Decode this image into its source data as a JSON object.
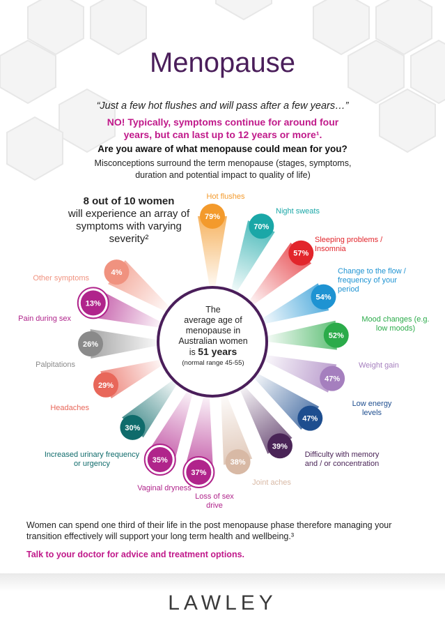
{
  "title": "Menopause",
  "quote": "“Just a few hot flushes and will pass after a few years…”",
  "no_statement": "NO! Typically, symptoms continue for around four years, but can last up to 12 years or more¹.",
  "question": "Are you aware of what menopause could mean for you?",
  "misconceptions": "Misconceptions surround the term menopause (stages, symptoms, duration and potential impact to quality of life)",
  "eight_out_of_ten": {
    "strong": "8 out of 10 women",
    "rest": "will experience an array of symptoms with varying severity²"
  },
  "center": {
    "line1": "The",
    "line2": "average age of",
    "line3": "menopause in",
    "line4": "Australian women",
    "is_word": "is",
    "age": "51 years",
    "range": "(normal range 45-55)"
  },
  "symptoms": [
    {
      "label": "Hot flushes",
      "percent": "79%",
      "color": "#f39a2c"
    },
    {
      "label": "Night sweats",
      "percent": "70%",
      "color": "#1aa7a7"
    },
    {
      "label": "Sleeping problems / Insomnia",
      "percent": "57%",
      "color": "#e2252b"
    },
    {
      "label": "Change to the flow / frequency of your period",
      "percent": "54%",
      "color": "#1e93d2"
    },
    {
      "label": "Mood changes (e.g. low moods)",
      "percent": "52%",
      "color": "#2bab4a"
    },
    {
      "label": "Weight gain",
      "percent": "47%",
      "color": "#a57fbe"
    },
    {
      "label": "Low energy levels",
      "percent": "47%",
      "color": "#1e4e8f"
    },
    {
      "label": "Difficulty with memory and / or concentration",
      "percent": "39%",
      "color": "#4a2457"
    },
    {
      "label": "Joint aches",
      "percent": "38%",
      "color": "#d8b9a5"
    },
    {
      "label": "Loss of sex drive",
      "percent": "37%",
      "color": "#b0248b"
    },
    {
      "label": "Vaginal dryness",
      "percent": "35%",
      "color": "#b0248b"
    },
    {
      "label": "Increased urinary frequency or urgency",
      "percent": "30%",
      "color": "#0f6b6b"
    },
    {
      "label": "Headaches",
      "percent": "29%",
      "color": "#e8675a"
    },
    {
      "label": "Palpitations",
      "percent": "26%",
      "color": "#8a8a8a"
    },
    {
      "label": "Pain during sex",
      "percent": "13%",
      "color": "#b0248b"
    },
    {
      "label": "Other symptoms",
      "percent": "4%",
      "color": "#f0927f"
    }
  ],
  "footer": "Women can spend one third of their life in the post menopause phase therefore managing your transition effectively will support your long term health and wellbeing.³",
  "talk": "Talk to your doctor for advice and treatment options.",
  "logo": "LAWLEY"
}
